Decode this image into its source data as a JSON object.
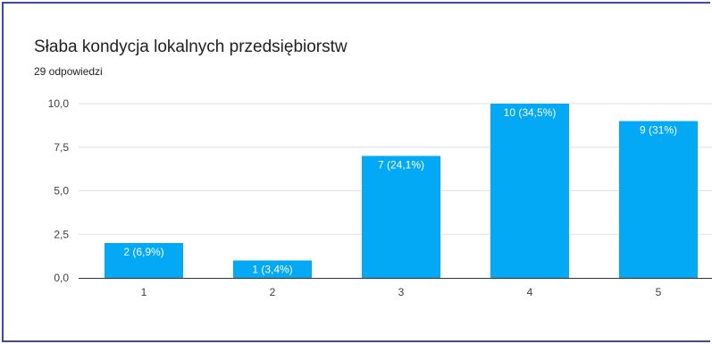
{
  "chart_data": {
    "type": "bar",
    "title": "Słaba kondycja lokalnych przedsiębiorstw",
    "subtitle": "29 odpowiedzi",
    "xlabel": "",
    "ylabel": "",
    "categories": [
      "1",
      "2",
      "3",
      "4",
      "5"
    ],
    "values": [
      2,
      1,
      7,
      10,
      9
    ],
    "data_labels": [
      "2 (6,9%)",
      "1 (3,4%)",
      "7 (24,1%)",
      "10 (34,5%)",
      "9 (31%)"
    ],
    "ylim": [
      0,
      10
    ],
    "yticks": [
      0,
      2.5,
      5,
      7.5,
      10
    ],
    "ytick_labels": [
      "0,0",
      "2,5",
      "5,0",
      "7,5",
      "10,0"
    ],
    "grid": true,
    "legend": "none",
    "bar_color": "#03a9f4",
    "grid_color": "#e0e0e0",
    "axis_color": "#333333",
    "frame_color": "#3d4aa6"
  }
}
